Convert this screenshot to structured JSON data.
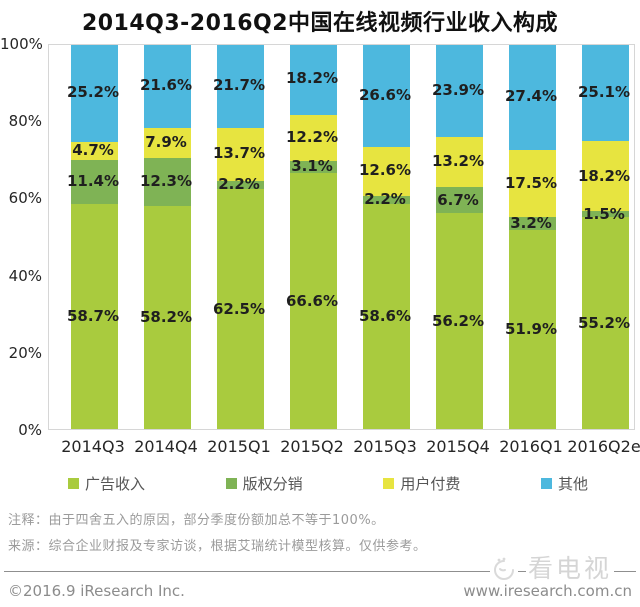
{
  "title": "2014Q3-2016Q2中国在线视频行业收入构成",
  "chart_data": {
    "type": "bar",
    "stacked": true,
    "title": "2014Q3-2016Q2中国在线视频行业收入构成",
    "categories": [
      "2014Q3",
      "2014Q4",
      "2015Q1",
      "2015Q2",
      "2015Q3",
      "2015Q4",
      "2016Q1",
      "2016Q2e"
    ],
    "series": [
      {
        "name": "广告收入",
        "color": "#a9cb3e",
        "values": [
          58.7,
          58.2,
          62.5,
          66.6,
          58.6,
          56.2,
          51.9,
          55.2
        ]
      },
      {
        "name": "版权分销",
        "color": "#7fb355",
        "values": [
          11.4,
          12.3,
          2.2,
          3.1,
          2.2,
          6.7,
          3.2,
          1.5
        ]
      },
      {
        "name": "用户付费",
        "color": "#e7e440",
        "values": [
          4.7,
          7.9,
          13.7,
          12.2,
          12.6,
          13.2,
          17.5,
          18.2
        ]
      },
      {
        "name": "其他",
        "color": "#4db8de",
        "values": [
          25.2,
          21.6,
          21.7,
          18.2,
          26.6,
          23.9,
          27.4,
          25.1
        ]
      }
    ],
    "y_ticks": [
      "100%",
      "80%",
      "60%",
      "40%",
      "20%",
      "0%"
    ],
    "ylim": [
      0,
      100
    ],
    "grid": false,
    "legend_position": "bottom",
    "value_suffix": "%",
    "xlabel": "",
    "ylabel": ""
  },
  "notes": {
    "note1": "注释：由于四舍五入的原因，部分季度份额加总不等于100%。",
    "note2": "来源：综合企业财报及专家访谈，根据艾瑞统计模型核算。仅供参考。"
  },
  "footer": {
    "copyright": "©2016.9 iResearch Inc.",
    "website": "www.iresearch.com.cn"
  },
  "watermark": {
    "label": "看电视"
  }
}
